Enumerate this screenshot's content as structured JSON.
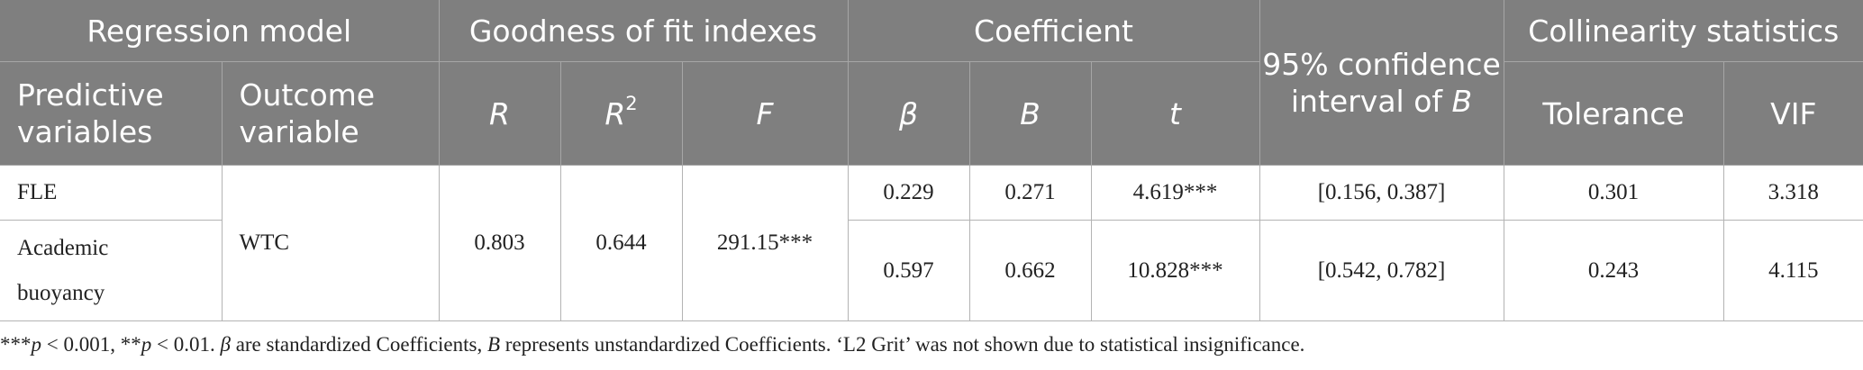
{
  "table": {
    "group_headers": {
      "regression_model": "Regression model",
      "goodness_of_fit": "Goodness of fit indexes",
      "coefficient": "Coefficient",
      "ci": "95% confidence interval of",
      "ci_symbol": "B",
      "collinearity": "Collinearity statistics"
    },
    "sub_headers": {
      "predictive": "Predictive variables",
      "outcome": "Outcome variable",
      "r": "R",
      "r2": "R",
      "r2_sup": "2",
      "f": "F",
      "beta": "β",
      "b": "B",
      "t": "t",
      "tolerance": "Tolerance",
      "vif": "VIF"
    },
    "rows": [
      {
        "predictor": "FLE",
        "beta": "0.229",
        "b": "0.271",
        "t": "4.619***",
        "ci": "[0.156, 0.387]",
        "tolerance": "0.301",
        "vif": "3.318"
      },
      {
        "predictor": "Academic buoyancy",
        "beta": "0.597",
        "b": "0.662",
        "t": "10.828***",
        "ci": "[0.542, 0.782]",
        "tolerance": "0.243",
        "vif": "4.115"
      }
    ],
    "shared": {
      "outcome": "WTC",
      "r": "0.803",
      "r2": "0.644",
      "f": "291.15***"
    }
  },
  "note": {
    "p1": "***",
    "p1_var": "p",
    "p1_rest": " < 0.001, **",
    "p2_var": "p",
    "p2_rest": " < 0.01. ",
    "beta_sym": "β",
    "beta_text": " are standardized Coefficients, ",
    "b_sym": "B",
    "b_text": " represents unstandardized Coefficients. ‘L2 Grit’ was not shown due to statistical insignificance."
  }
}
